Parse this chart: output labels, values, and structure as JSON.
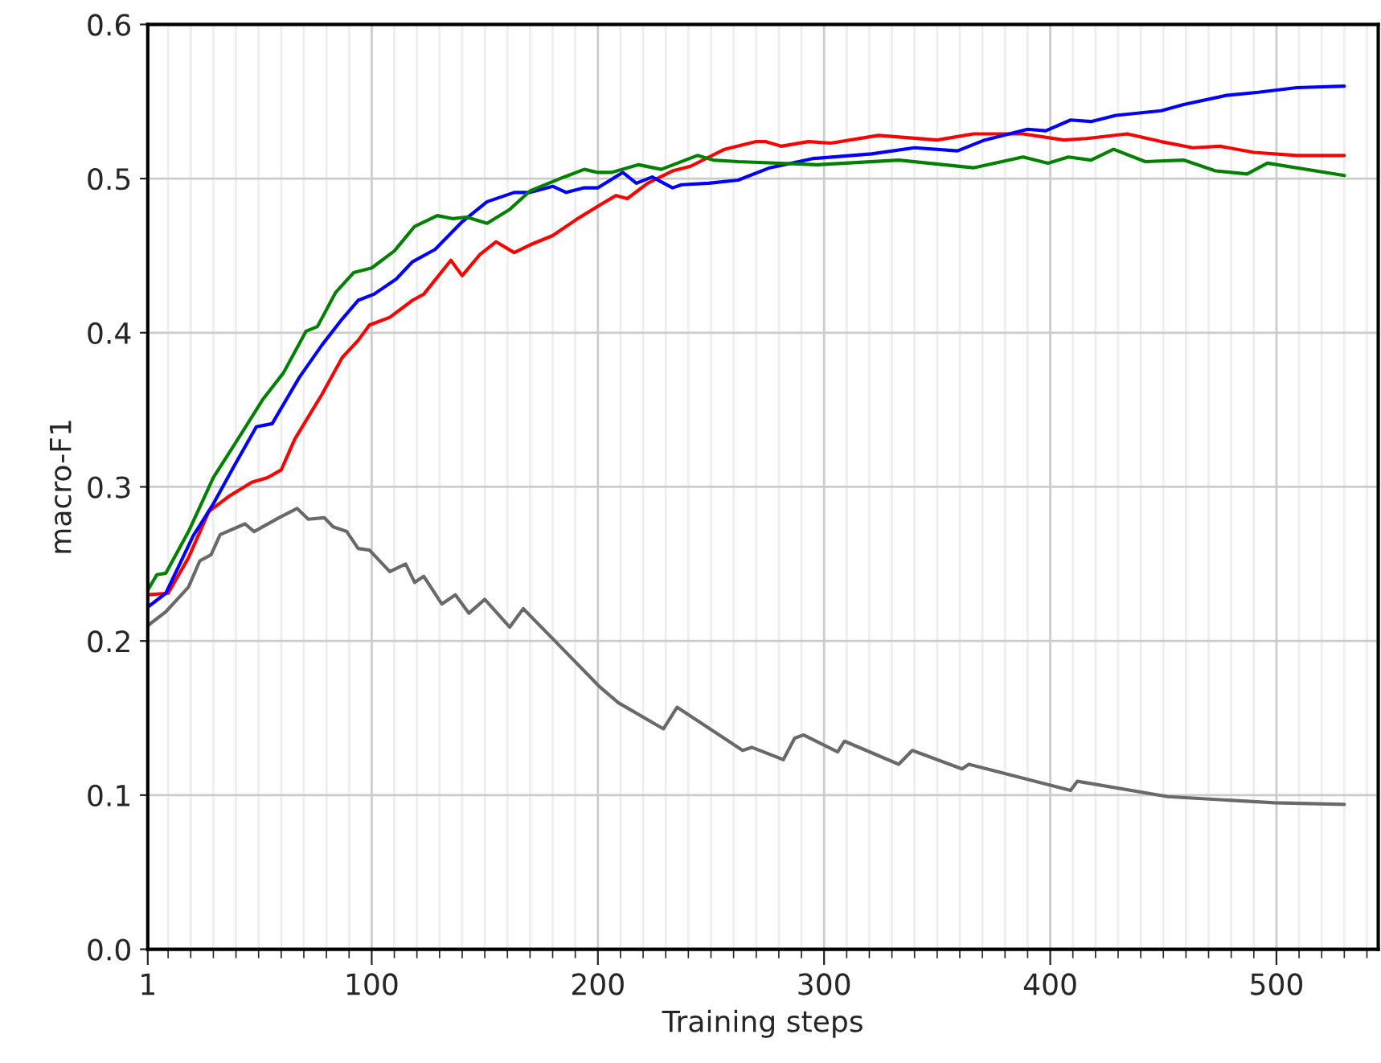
{
  "chart_data": {
    "type": "line",
    "xlabel": "Training steps",
    "ylabel": "macro-F1",
    "xlim": [
      1,
      545
    ],
    "ylim": [
      0,
      0.6
    ],
    "xticks": [
      1,
      {
        "value": 10,
        "label": null
      },
      {
        "value": 20,
        "label": null
      },
      {
        "value": 30,
        "label": null
      },
      {
        "value": 40,
        "label": null
      },
      {
        "value": 50,
        "label": null
      },
      {
        "value": 60,
        "label": null
      },
      {
        "value": 70,
        "label": null
      },
      {
        "value": 80,
        "label": null
      },
      {
        "value": 90,
        "label": null
      },
      100,
      {
        "value": 110,
        "label": null
      },
      {
        "value": 120,
        "label": null
      },
      {
        "value": 130,
        "label": null
      },
      {
        "value": 140,
        "label": null
      },
      {
        "value": 150,
        "label": null
      },
      {
        "value": 160,
        "label": null
      },
      {
        "value": 170,
        "label": null
      },
      {
        "value": 180,
        "label": null
      },
      {
        "value": 190,
        "label": null
      },
      200,
      {
        "value": 210,
        "label": null
      },
      {
        "value": 220,
        "label": null
      },
      {
        "value": 230,
        "label": null
      },
      {
        "value": 240,
        "label": null
      },
      {
        "value": 250,
        "label": null
      },
      {
        "value": 260,
        "label": null
      },
      {
        "value": 270,
        "label": null
      },
      {
        "value": 280,
        "label": null
      },
      {
        "value": 290,
        "label": null
      },
      300,
      {
        "value": 310,
        "label": null
      },
      {
        "value": 320,
        "label": null
      },
      {
        "value": 330,
        "label": null
      },
      {
        "value": 340,
        "label": null
      },
      {
        "value": 350,
        "label": null
      },
      {
        "value": 360,
        "label": null
      },
      {
        "value": 370,
        "label": null
      },
      {
        "value": 380,
        "label": null
      },
      {
        "value": 390,
        "label": null
      },
      400,
      {
        "value": 410,
        "label": null
      },
      {
        "value": 420,
        "label": null
      },
      {
        "value": 430,
        "label": null
      },
      {
        "value": 440,
        "label": null
      },
      {
        "value": 450,
        "label": null
      },
      {
        "value": 460,
        "label": null
      },
      {
        "value": 470,
        "label": null
      },
      {
        "value": 480,
        "label": null
      },
      {
        "value": 490,
        "label": null
      },
      500,
      {
        "value": 510,
        "label": null
      },
      {
        "value": 520,
        "label": null
      },
      {
        "value": 530,
        "label": null
      },
      {
        "value": 540,
        "label": null
      }
    ],
    "yticks": [
      {
        "value": 0,
        "label": "0.0"
      },
      {
        "value": 0.1,
        "label": "0.1"
      },
      {
        "value": 0.2,
        "label": "0.2"
      },
      {
        "value": 0.3,
        "label": "0.3"
      },
      {
        "value": 0.4,
        "label": "0.4"
      },
      {
        "value": 0.5,
        "label": "0.5"
      },
      {
        "value": 0.6,
        "label": "0.6"
      }
    ],
    "grid": true,
    "line_style": "solid",
    "marker": "none",
    "series": [
      {
        "color": "#696969",
        "x": [
          1,
          9,
          19,
          24,
          29,
          33,
          44,
          48,
          59,
          67,
          72,
          79,
          83,
          89,
          94,
          99,
          108,
          115,
          119,
          123,
          131,
          137,
          143,
          150,
          161,
          167,
          181,
          201,
          209,
          229,
          235,
          264,
          268,
          282,
          287,
          291,
          306,
          309,
          333,
          339,
          361,
          364,
          409,
          412,
          452,
          499,
          530
        ],
        "values": [
          0.21,
          0.219,
          0.235,
          0.252,
          0.256,
          0.269,
          0.276,
          0.271,
          0.28,
          0.286,
          0.279,
          0.28,
          0.274,
          0.271,
          0.26,
          0.259,
          0.245,
          0.25,
          0.238,
          0.242,
          0.224,
          0.23,
          0.218,
          0.227,
          0.209,
          0.221,
          0.2,
          0.17,
          0.16,
          0.143,
          0.157,
          0.129,
          0.131,
          0.123,
          0.137,
          0.139,
          0.128,
          0.135,
          0.12,
          0.129,
          0.117,
          0.12,
          0.103,
          0.109,
          0.099,
          0.095,
          0.094
        ]
      },
      {
        "color": "#ff0000",
        "x": [
          1,
          10,
          19,
          28,
          37,
          47,
          54,
          60,
          66,
          78,
          87,
          94,
          99,
          108,
          118,
          123,
          135,
          140,
          148,
          155,
          163,
          170,
          180,
          190,
          201,
          208,
          213,
          222,
          233,
          241,
          256,
          270,
          274,
          281,
          293,
          303,
          324,
          350,
          366,
          388,
          406,
          416,
          434,
          449,
          463,
          475,
          490,
          509,
          530
        ],
        "values": [
          0.23,
          0.231,
          0.254,
          0.284,
          0.294,
          0.303,
          0.306,
          0.311,
          0.331,
          0.36,
          0.384,
          0.395,
          0.405,
          0.41,
          0.421,
          0.425,
          0.447,
          0.437,
          0.451,
          0.459,
          0.452,
          0.457,
          0.463,
          0.473,
          0.483,
          0.489,
          0.487,
          0.497,
          0.505,
          0.508,
          0.519,
          0.524,
          0.524,
          0.521,
          0.524,
          0.523,
          0.528,
          0.525,
          0.529,
          0.529,
          0.525,
          0.526,
          0.529,
          0.524,
          0.52,
          0.521,
          0.517,
          0.515,
          0.515
        ]
      },
      {
        "color": "#0000ff",
        "x": [
          1,
          9,
          21,
          30,
          39,
          49,
          56,
          68,
          78,
          87,
          94,
          101,
          111,
          118,
          128,
          140,
          151,
          163,
          170,
          180,
          186,
          194,
          200,
          211,
          217,
          224,
          233,
          237,
          249,
          262,
          276,
          295,
          321,
          340,
          359,
          371,
          390,
          398,
          409,
          418,
          429,
          449,
          459,
          478,
          492,
          509,
          530
        ],
        "values": [
          0.222,
          0.231,
          0.268,
          0.289,
          0.313,
          0.339,
          0.341,
          0.371,
          0.392,
          0.409,
          0.421,
          0.425,
          0.435,
          0.446,
          0.454,
          0.472,
          0.485,
          0.491,
          0.491,
          0.495,
          0.491,
          0.494,
          0.494,
          0.504,
          0.497,
          0.501,
          0.494,
          0.496,
          0.497,
          0.499,
          0.507,
          0.513,
          0.516,
          0.52,
          0.518,
          0.525,
          0.532,
          0.531,
          0.538,
          0.537,
          0.541,
          0.544,
          0.548,
          0.554,
          0.556,
          0.559,
          0.56
        ]
      },
      {
        "color": "#008000",
        "x": [
          1,
          5,
          9,
          19,
          30,
          40,
          52,
          61,
          71,
          76,
          84,
          92,
          100,
          110,
          119,
          129,
          136,
          142,
          151,
          161,
          170,
          185,
          194,
          200,
          206,
          218,
          228,
          244,
          251,
          262,
          297,
          333,
          366,
          388,
          399,
          408,
          418,
          428,
          442,
          459,
          473,
          487,
          496,
          530
        ],
        "values": [
          0.233,
          0.243,
          0.244,
          0.271,
          0.306,
          0.329,
          0.357,
          0.374,
          0.401,
          0.404,
          0.426,
          0.439,
          0.442,
          0.453,
          0.469,
          0.476,
          0.474,
          0.475,
          0.471,
          0.48,
          0.492,
          0.501,
          0.506,
          0.504,
          0.504,
          0.509,
          0.506,
          0.515,
          0.512,
          0.511,
          0.509,
          0.512,
          0.507,
          0.514,
          0.51,
          0.514,
          0.512,
          0.519,
          0.511,
          0.512,
          0.505,
          0.503,
          0.51,
          0.502
        ]
      }
    ]
  }
}
